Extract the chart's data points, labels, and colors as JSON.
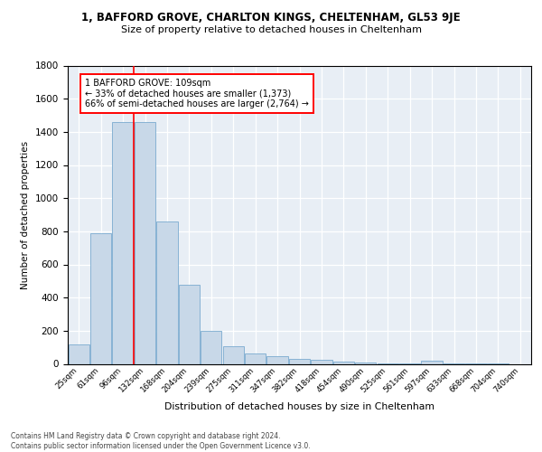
{
  "title1": "1, BAFFORD GROVE, CHARLTON KINGS, CHELTENHAM, GL53 9JE",
  "title2": "Size of property relative to detached houses in Cheltenham",
  "xlabel": "Distribution of detached houses by size in Cheltenham",
  "ylabel": "Number of detached properties",
  "footnote": "Contains HM Land Registry data © Crown copyright and database right 2024.\nContains public sector information licensed under the Open Government Licence v3.0.",
  "bar_labels": [
    "25sqm",
    "61sqm",
    "96sqm",
    "132sqm",
    "168sqm",
    "204sqm",
    "239sqm",
    "275sqm",
    "311sqm",
    "347sqm",
    "382sqm",
    "418sqm",
    "454sqm",
    "490sqm",
    "525sqm",
    "561sqm",
    "597sqm",
    "633sqm",
    "668sqm",
    "704sqm",
    "740sqm"
  ],
  "bar_values": [
    120,
    790,
    1460,
    1460,
    860,
    480,
    200,
    105,
    65,
    45,
    30,
    25,
    12,
    8,
    5,
    4,
    18,
    2,
    1,
    1,
    0
  ],
  "bar_color": "#c8d8e8",
  "bar_edge_color": "#7aabcf",
  "vline_x": 2.5,
  "vline_color": "red",
  "annotation_text": "1 BAFFORD GROVE: 109sqm\n← 33% of detached houses are smaller (1,373)\n66% of semi-detached houses are larger (2,764) →",
  "annotation_box_color": "white",
  "annotation_box_edge": "red",
  "bg_color": "#e8eef5",
  "grid_color": "white",
  "ylim": [
    0,
    1800
  ]
}
